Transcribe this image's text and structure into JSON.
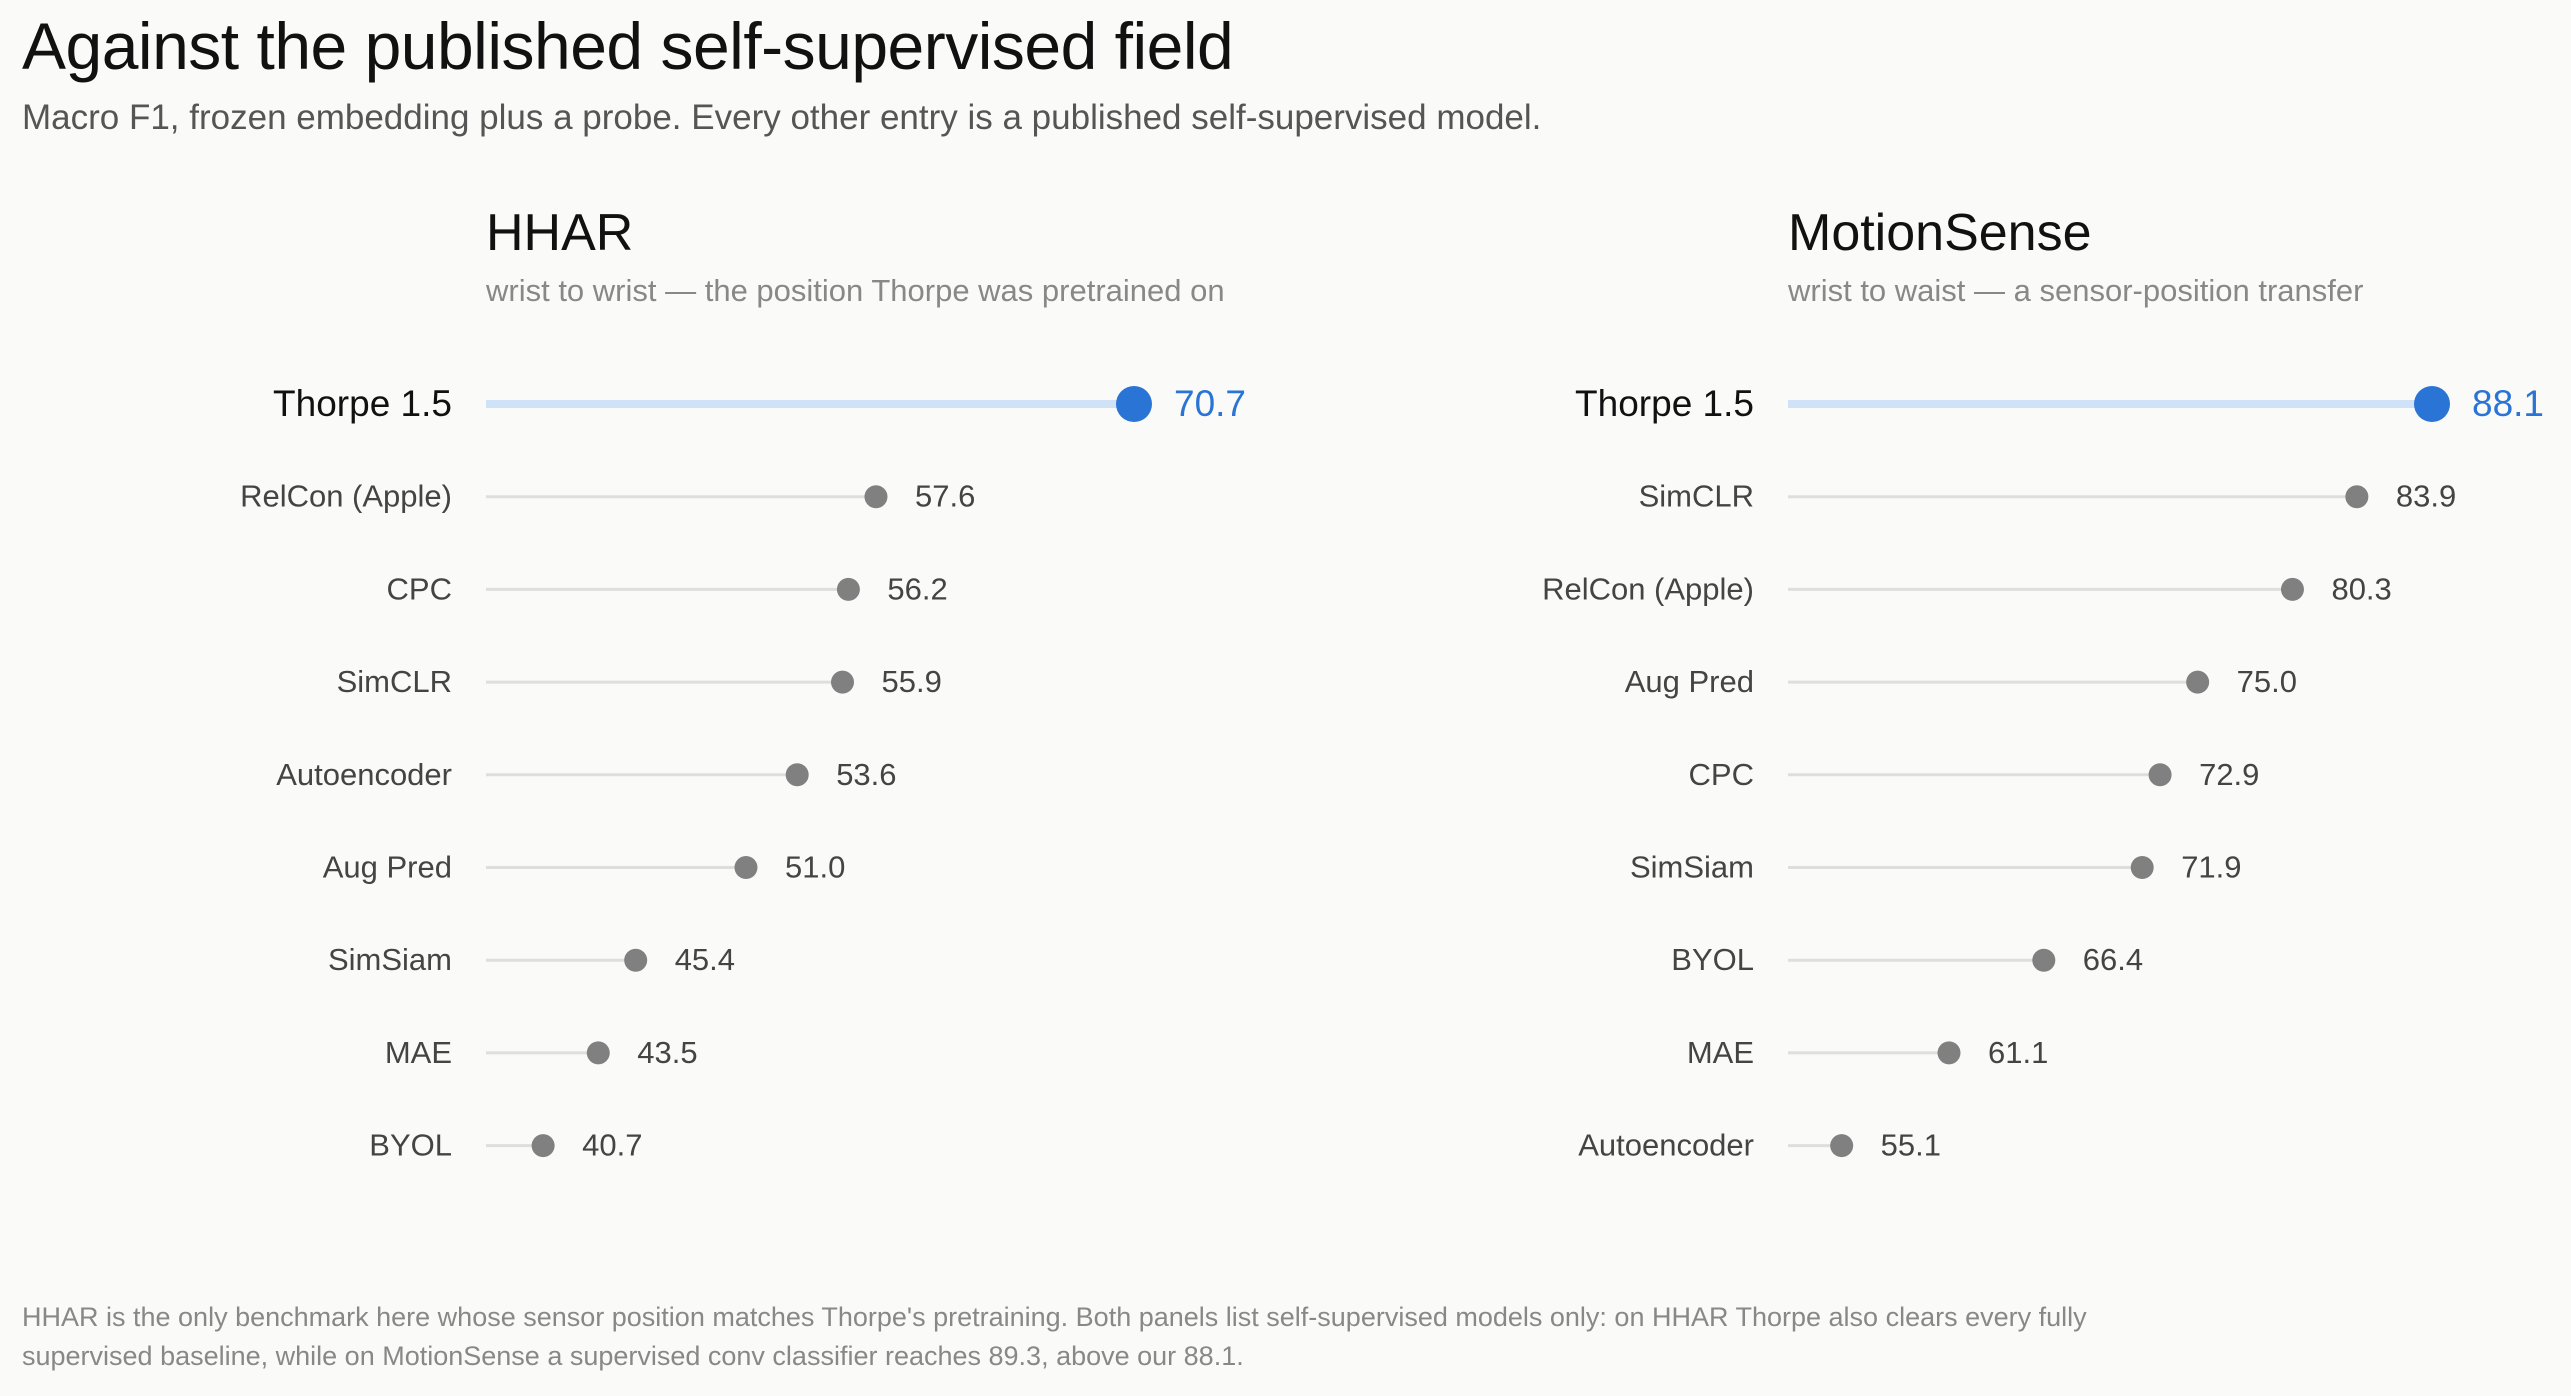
{
  "title": "Against the published self-supervised field",
  "subtitle": "Macro F1, frozen embedding plus a probe. Every other entry is a published self-supervised model.",
  "footnote": "HHAR is the only benchmark here whose sensor position matches Thorpe's pretraining. Both panels list self-supervised models only: on HHAR Thorpe also clears every fully supervised baseline, while on MotionSense a supervised conv classifier reaches 89.3, above our 88.1.",
  "colors": {
    "highlight_dot": "#2a74d6",
    "highlight_line": "#cfe2f7",
    "dot": "#808080",
    "line": "#dedede",
    "highlight_label": "#111111",
    "label": "#444444",
    "highlight_value": "#2a74d6",
    "value": "#444444"
  },
  "chart_data": [
    {
      "type": "lollipop",
      "title": "HHAR",
      "subtitle": "wrist to wrist — the position Thorpe was pretrained on",
      "highlight": "Thorpe 1.5",
      "categories": [
        "Thorpe 1.5",
        "RelCon (Apple)",
        "CPC",
        "SimCLR",
        "Autoencoder",
        "Aug Pred",
        "SimSiam",
        "MAE",
        "BYOL"
      ],
      "values": [
        70.7,
        57.6,
        56.2,
        55.9,
        53.6,
        51.0,
        45.4,
        43.5,
        40.7
      ],
      "value_labels": [
        "70.7",
        "57.6",
        "56.2",
        "55.9",
        "53.6",
        "51.0",
        "45.4",
        "43.5",
        "40.7"
      ],
      "xlim": [
        37.8,
        70.7
      ]
    },
    {
      "type": "lollipop",
      "title": "MotionSense",
      "subtitle": "wrist to waist — a sensor-position transfer",
      "highlight": "Thorpe 1.5",
      "categories": [
        "Thorpe 1.5",
        "SimCLR",
        "RelCon (Apple)",
        "Aug Pred",
        "CPC",
        "SimSiam",
        "BYOL",
        "MAE",
        "Autoencoder"
      ],
      "values": [
        88.1,
        83.9,
        80.3,
        75.0,
        72.9,
        71.9,
        66.4,
        61.1,
        55.1
      ],
      "value_labels": [
        "88.1",
        "83.9",
        "80.3",
        "75.0",
        "72.9",
        "71.9",
        "66.4",
        "61.1",
        "55.1"
      ],
      "xlim": [
        52.1,
        88.1
      ]
    }
  ]
}
